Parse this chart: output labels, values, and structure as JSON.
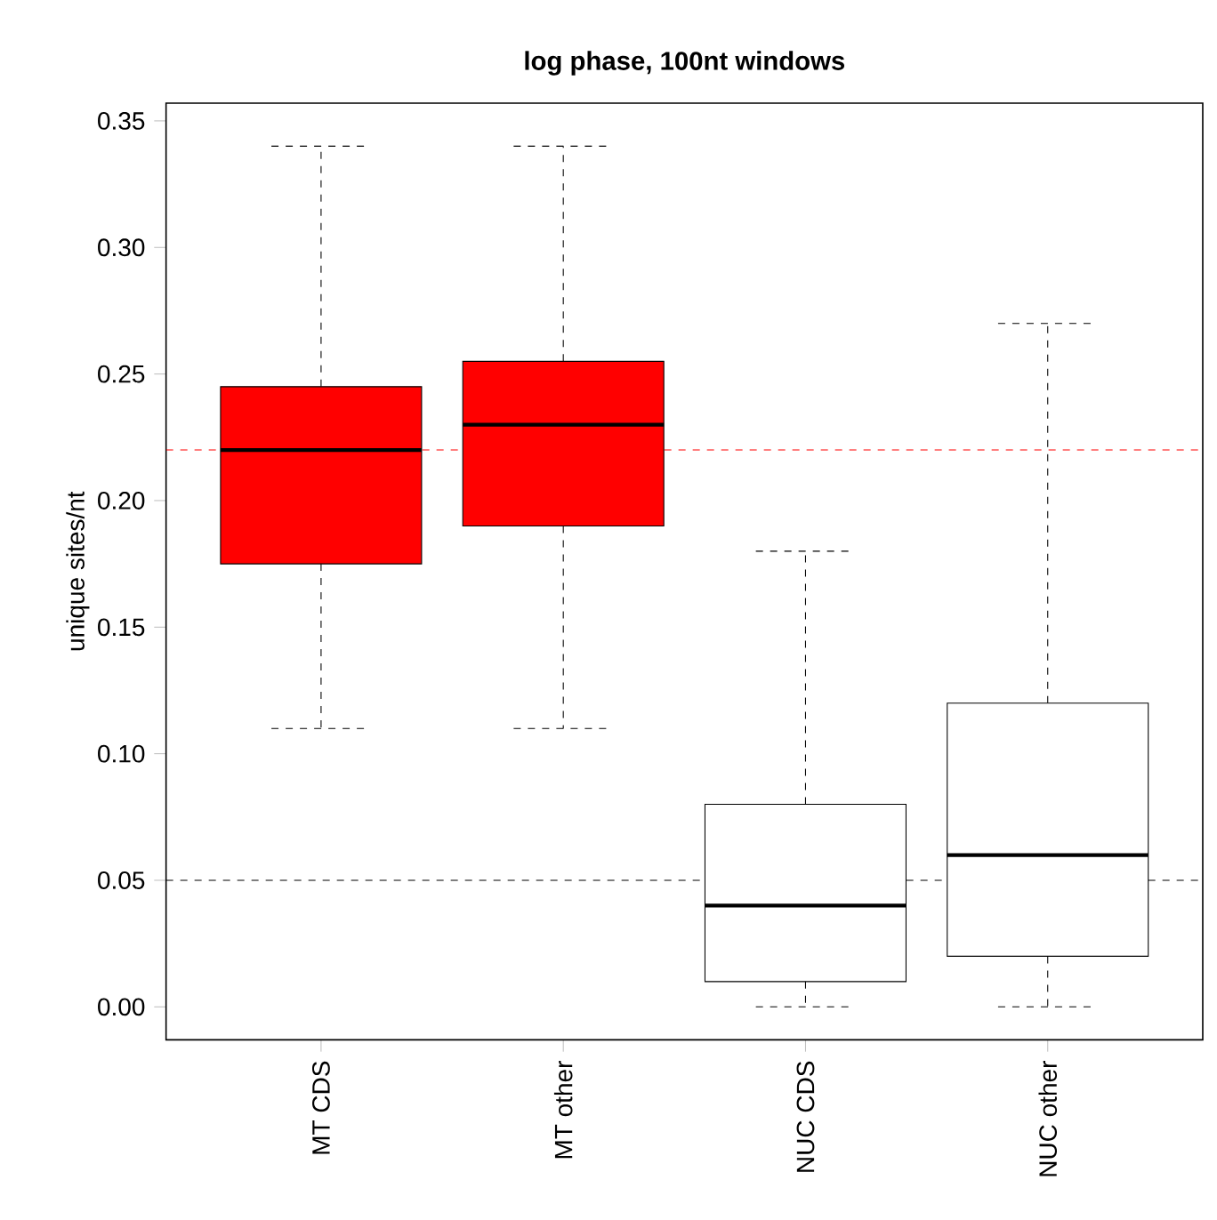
{
  "chart_data": {
    "type": "box",
    "title": "log phase, 100nt windows",
    "ylabel": "unique sites/nt",
    "categories": [
      "MT CDS",
      "MT other",
      "NUC CDS",
      "NUC other"
    ],
    "boxes": [
      {
        "low": 0.11,
        "q1": 0.175,
        "median": 0.22,
        "q3": 0.245,
        "high": 0.34
      },
      {
        "low": 0.11,
        "q1": 0.19,
        "median": 0.23,
        "q3": 0.255,
        "high": 0.34
      },
      {
        "low": 0.0,
        "q1": 0.01,
        "median": 0.04,
        "q3": 0.08,
        "high": 0.18
      },
      {
        "low": 0.0,
        "q1": 0.02,
        "median": 0.06,
        "q3": 0.12,
        "high": 0.27
      }
    ],
    "colors": [
      "#ff0000",
      "#ff0000",
      "#ffffff",
      "#ffffff"
    ],
    "ylim": [
      -0.013,
      0.357
    ],
    "yticks": [
      {
        "value": 0,
        "label": "0.00"
      },
      {
        "value": 0.05,
        "label": "0.05"
      },
      {
        "value": 0.1,
        "label": "0.10"
      },
      {
        "value": 0.15,
        "label": "0.15"
      },
      {
        "value": 0.2,
        "label": "0.20"
      },
      {
        "value": 0.25,
        "label": "0.25"
      },
      {
        "value": 0.3,
        "label": "0.30"
      },
      {
        "value": 0.35,
        "label": "0.35"
      }
    ],
    "ref_lines": [
      {
        "axis": "y",
        "value": 0.22,
        "color": "#ff0000",
        "line_style": "dashed"
      },
      {
        "axis": "y",
        "value": 0.05,
        "color": "#000000",
        "line_style": "dashed"
      }
    ],
    "grid": false
  }
}
